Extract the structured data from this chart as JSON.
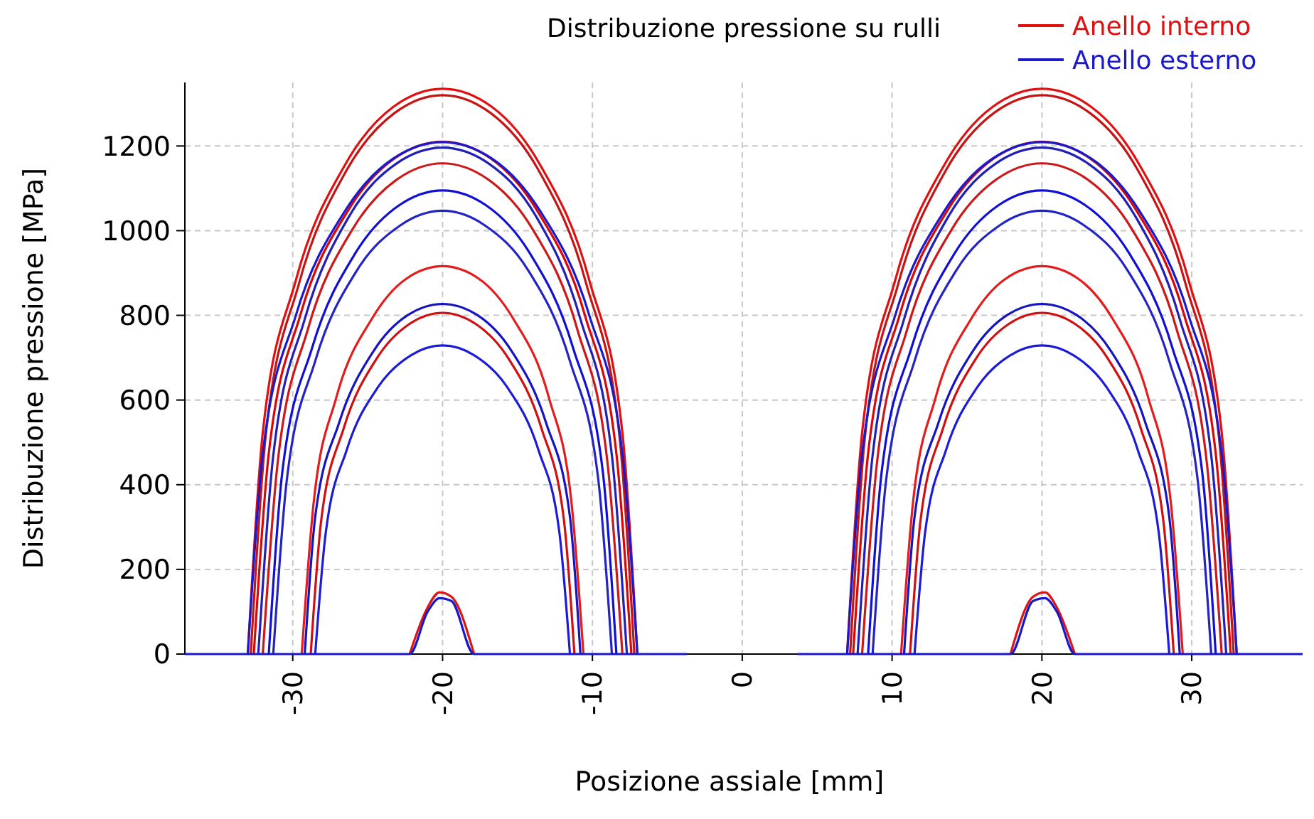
{
  "chart_data": {
    "type": "line",
    "title": "Distribuzione pressione su rulli",
    "xlabel": "Posizione assiale [mm]",
    "ylabel": "Distribuzione pressione [MPa]",
    "xlim": [
      -37.2,
      37.4
    ],
    "ylim": [
      0,
      1350
    ],
    "xticks": [
      -30,
      -20,
      -10,
      0,
      10,
      20,
      30
    ],
    "yticks": [
      0,
      200,
      400,
      600,
      800,
      1000,
      1200
    ],
    "grid": true,
    "legend": "top right",
    "marker": "none",
    "line_style": "solid",
    "series": [
      {
        "name": "Anello interno",
        "color": "#e01010",
        "x": [
          -33,
          -32,
          -29.8,
          -26.5,
          -23.3,
          -20,
          -16.7,
          -13.5,
          -10.2,
          -8,
          -7,
          0,
          7,
          8,
          10.2,
          13.5,
          16.7,
          20,
          23.3,
          26.5,
          29.8,
          32,
          33
        ],
        "values": [
          0,
          523,
          882,
          1156,
          1292,
          1335,
          1292,
          1156,
          882,
          523,
          0,
          null,
          0,
          523,
          882,
          1156,
          1292,
          1335,
          1292,
          1156,
          882,
          523,
          0
        ]
      },
      {
        "color": "#c41414",
        "x": [
          -32.8,
          -31.8,
          -29.6,
          -26.4,
          -23.2,
          -20,
          -16.8,
          -13.6,
          -10.4,
          -8.2,
          -7.2,
          0,
          7.2,
          8.2,
          10.4,
          13.6,
          16.8,
          20,
          23.2,
          26.4,
          29.6,
          31.8,
          32.8
        ],
        "values": [
          0,
          517,
          873,
          1143,
          1278,
          1320,
          1278,
          1143,
          873,
          517,
          0,
          null,
          0,
          517,
          873,
          1143,
          1278,
          1320,
          1278,
          1143,
          873,
          517,
          0
        ]
      },
      {
        "color": "#d80808",
        "x": [
          -32.6,
          -31.6,
          -29.5,
          -26.3,
          -23.2,
          -20,
          -16.8,
          -13.7,
          -10.5,
          -8.4,
          -7.4,
          0,
          7.4,
          8.4,
          10.5,
          13.7,
          16.8,
          20,
          23.2,
          26.3,
          29.5,
          31.6,
          32.6
        ],
        "values": [
          0,
          474,
          800,
          1048,
          1171,
          1210,
          1171,
          1048,
          800,
          474,
          0,
          null,
          0,
          474,
          800,
          1048,
          1171,
          1210,
          1171,
          1048,
          800,
          474,
          0
        ]
      },
      {
        "color": "#cc1818",
        "x": [
          -32,
          -31,
          -29,
          -26,
          -23,
          -20,
          -17,
          -14,
          -11,
          -9,
          -8,
          0,
          8,
          9,
          11,
          14,
          17,
          20,
          23,
          26,
          29,
          31,
          32
        ],
        "values": [
          0,
          454,
          766,
          1004,
          1122,
          1159,
          1122,
          1004,
          766,
          454,
          0,
          null,
          0,
          454,
          766,
          1004,
          1122,
          1159,
          1122,
          1004,
          766,
          454,
          0
        ]
      },
      {
        "color": "#e41c1c",
        "x": [
          -29.4,
          -28.6,
          -27.1,
          -24.7,
          -22.4,
          -20,
          -17.6,
          -15.3,
          -12.9,
          -11.4,
          -10.6,
          0,
          10.6,
          11.4,
          12.9,
          15.3,
          17.6,
          20,
          22.4,
          24.7,
          27.1,
          28.6,
          29.4
        ],
        "values": [
          0,
          359,
          605,
          793,
          887,
          916,
          887,
          793,
          605,
          359,
          0,
          null,
          0,
          359,
          605,
          793,
          887,
          916,
          887,
          793,
          605,
          359,
          0
        ]
      },
      {
        "color": "#d01010",
        "x": [
          -28.8,
          -28.1,
          -26.6,
          -24.4,
          -22.2,
          -20,
          -17.8,
          -15.6,
          -13.4,
          -11.9,
          -11.2,
          0,
          11.2,
          11.9,
          13.4,
          15.6,
          17.8,
          20,
          22.2,
          24.4,
          26.6,
          28.1,
          28.8
        ],
        "values": [
          0,
          316,
          533,
          698,
          780,
          806,
          780,
          698,
          533,
          316,
          0,
          null,
          0,
          316,
          533,
          698,
          780,
          806,
          780,
          698,
          533,
          316,
          0
        ]
      },
      {
        "color": "#dc1414",
        "x": [
          -22.2,
          -21,
          -20.2,
          -19.4,
          -17.9,
          0,
          17.9,
          19.4,
          20.2,
          21,
          22.2
        ],
        "values": [
          0,
          110,
          146,
          135,
          0,
          null,
          0,
          135,
          146,
          110,
          0
        ]
      },
      {
        "name": "Anello esterno",
        "color": "#1a1acc",
        "x": [
          -33,
          -32,
          -29.8,
          -26.5,
          -23.3,
          -20,
          -16.7,
          -13.5,
          -10.2,
          -8,
          -7,
          0,
          7,
          8,
          10.2,
          13.5,
          16.7,
          20,
          23.3,
          26.5,
          29.8,
          32,
          33
        ],
        "values": [
          0,
          474,
          799,
          1047,
          1170,
          1209,
          1170,
          1047,
          799,
          474,
          0,
          null,
          0,
          474,
          799,
          1047,
          1170,
          1209,
          1170,
          1047,
          799,
          474,
          0
        ]
      },
      {
        "color": "#2020b8",
        "x": [
          -32.3,
          -31.3,
          -29.2,
          -26.2,
          -23.1,
          -20,
          -16.9,
          -13.8,
          -10.8,
          -8.7,
          -7.7,
          0,
          7.7,
          8.7,
          10.8,
          13.8,
          16.9,
          20,
          23.1,
          26.2,
          29.2,
          31.3,
          32.3
        ],
        "values": [
          0,
          469,
          791,
          1036,
          1158,
          1196,
          1158,
          1036,
          791,
          469,
          0,
          null,
          0,
          469,
          791,
          1036,
          1158,
          1196,
          1158,
          1036,
          791,
          469,
          0
        ]
      },
      {
        "color": "#1010d4",
        "x": [
          -31.6,
          -30.7,
          -28.7,
          -25.8,
          -22.9,
          -20,
          -17.1,
          -14.2,
          -11.3,
          -9.3,
          -8.4,
          0,
          8.4,
          9.3,
          11.3,
          14.2,
          17.1,
          20,
          22.9,
          25.8,
          28.7,
          30.7,
          31.6
        ],
        "values": [
          0,
          429,
          724,
          948,
          1060,
          1095,
          1060,
          948,
          724,
          429,
          0,
          null,
          0,
          429,
          724,
          948,
          1060,
          1095,
          1060,
          948,
          724,
          429,
          0
        ]
      },
      {
        "color": "#2424c4",
        "x": [
          -31.3,
          -30.4,
          -28.5,
          -25.7,
          -22.8,
          -20,
          -17.2,
          -14.3,
          -11.5,
          -9.6,
          -8.7,
          0,
          8.7,
          9.6,
          11.5,
          14.3,
          17.2,
          20,
          22.8,
          25.7,
          28.5,
          30.4,
          31.3
        ],
        "values": [
          0,
          410,
          692,
          907,
          1013,
          1047,
          1013,
          907,
          692,
          410,
          0,
          null,
          0,
          410,
          692,
          907,
          1013,
          1047,
          1013,
          907,
          692,
          410,
          0
        ]
      },
      {
        "color": "#1414c0",
        "x": [
          -29.2,
          -28.5,
          -26.9,
          -24.6,
          -22.3,
          -20,
          -17.7,
          -15.4,
          -13.1,
          -11.5,
          -10.8,
          0,
          10.8,
          11.5,
          13.1,
          15.4,
          17.7,
          20,
          22.3,
          24.6,
          26.9,
          28.5,
          29.2
        ],
        "values": [
          0,
          324,
          547,
          716,
          801,
          827,
          801,
          716,
          547,
          324,
          0,
          null,
          0,
          324,
          547,
          716,
          801,
          827,
          801,
          716,
          547,
          324,
          0
        ]
      },
      {
        "color": "#1c1cd8",
        "x": [
          -28.5,
          -27.8,
          -26.4,
          -24.3,
          -22.1,
          -20,
          -17.9,
          -15.7,
          -13.6,
          -12.2,
          -11.5,
          0,
          11.5,
          12.2,
          13.6,
          15.7,
          17.9,
          20,
          22.1,
          24.3,
          26.4,
          27.8,
          28.5
        ],
        "values": [
          0,
          286,
          482,
          631,
          706,
          729,
          706,
          631,
          482,
          286,
          0,
          null,
          0,
          286,
          482,
          631,
          706,
          729,
          706,
          631,
          482,
          286,
          0
        ]
      },
      {
        "color": "#1818c8",
        "x": [
          -37.2,
          -22.2,
          -21,
          -20.2,
          -19.4,
          -17.9,
          -3.7,
          0,
          3.7,
          17.9,
          19.4,
          20.2,
          21,
          22.2,
          37.4
        ],
        "values": [
          0,
          0,
          100,
          132,
          125,
          0,
          0,
          null,
          0,
          0,
          125,
          132,
          100,
          0,
          0
        ]
      }
    ]
  }
}
